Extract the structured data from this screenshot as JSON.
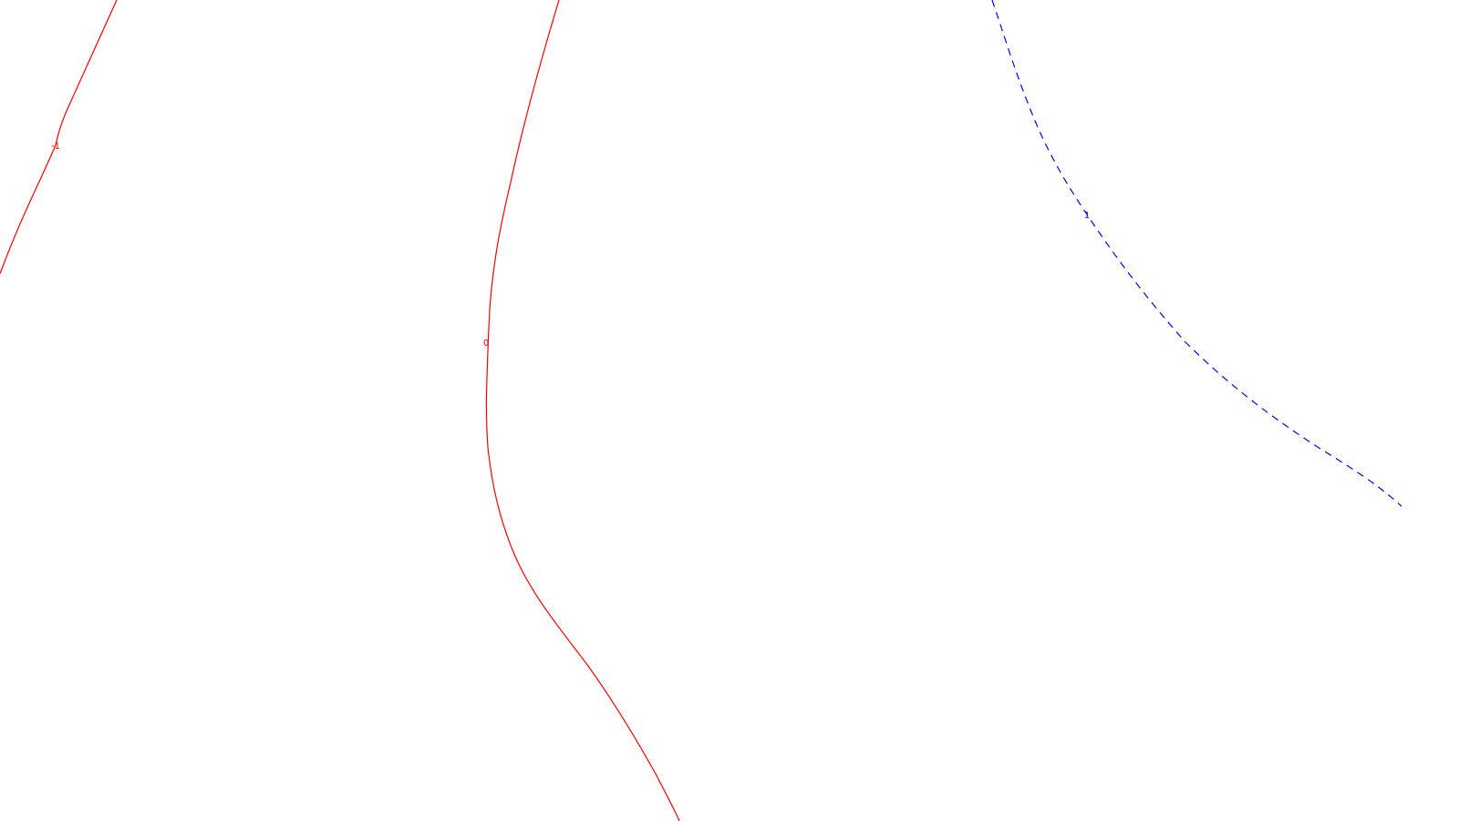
{
  "contours": [
    {
      "label": "-1",
      "level": -1,
      "color": "#ff0000",
      "style": "solid"
    },
    {
      "label": "0",
      "level": 0,
      "color": "#ff0000",
      "style": "solid"
    },
    {
      "label": "1",
      "level": 1,
      "color": "#0000ff",
      "style": "dashed"
    }
  ]
}
